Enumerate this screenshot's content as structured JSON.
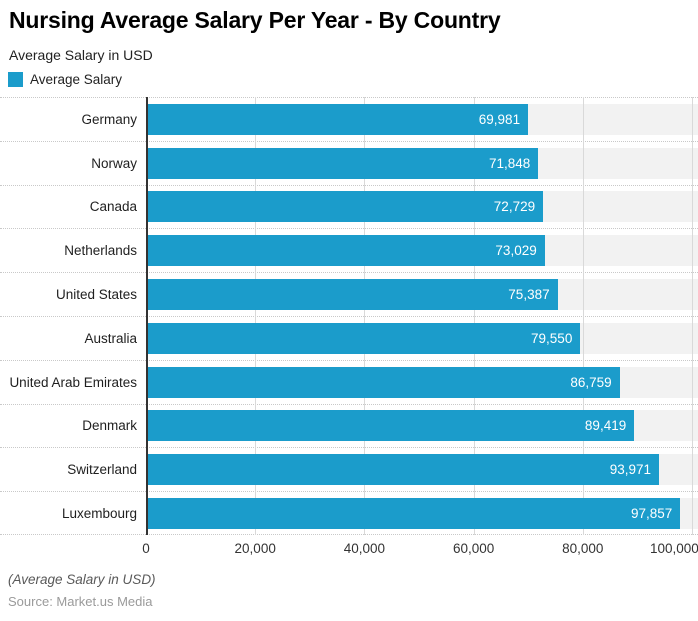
{
  "chart_data": {
    "type": "bar",
    "orientation": "horizontal",
    "title": "Nursing Average Salary Per Year - By Country",
    "subtitle": "Average Salary in USD",
    "legend_label": "Average Salary",
    "categories": [
      "Germany",
      "Norway",
      "Canada",
      "Netherlands",
      "United States",
      "Australia",
      "United Arab Emirates",
      "Denmark",
      "Switzerland",
      "Luxembourg"
    ],
    "values": [
      69981,
      71848,
      72729,
      73029,
      75387,
      79550,
      86759,
      89419,
      93971,
      97857
    ],
    "value_labels": [
      "69,981",
      "71,848",
      "72,729",
      "73,029",
      "75,387",
      "79,550",
      "86,759",
      "89,419",
      "93,971",
      "97,857"
    ],
    "xlabel": "",
    "ylabel": "",
    "axis_max": 101100,
    "xticks": [
      0,
      20000,
      40000,
      60000,
      80000,
      100000
    ],
    "xtick_labels": [
      "0",
      "20,000",
      "40,000",
      "60,000",
      "80,000",
      "100,000"
    ],
    "grid": "vertical solid + horizontal dotted row separators",
    "legend_position": "top-left",
    "footnote": "(Average Salary in USD)",
    "source": "Source: Market.us Media",
    "colors": {
      "bar": "#1b9ccb",
      "row_track": "#f2f2f2",
      "value_text": "#ffffff",
      "axis_line": "#333333",
      "gridline": "#d9d9d9",
      "dotted_line": "#c9c9c9",
      "title": "#000000",
      "footnote": "#595959",
      "source": "#9a9a9a"
    }
  }
}
